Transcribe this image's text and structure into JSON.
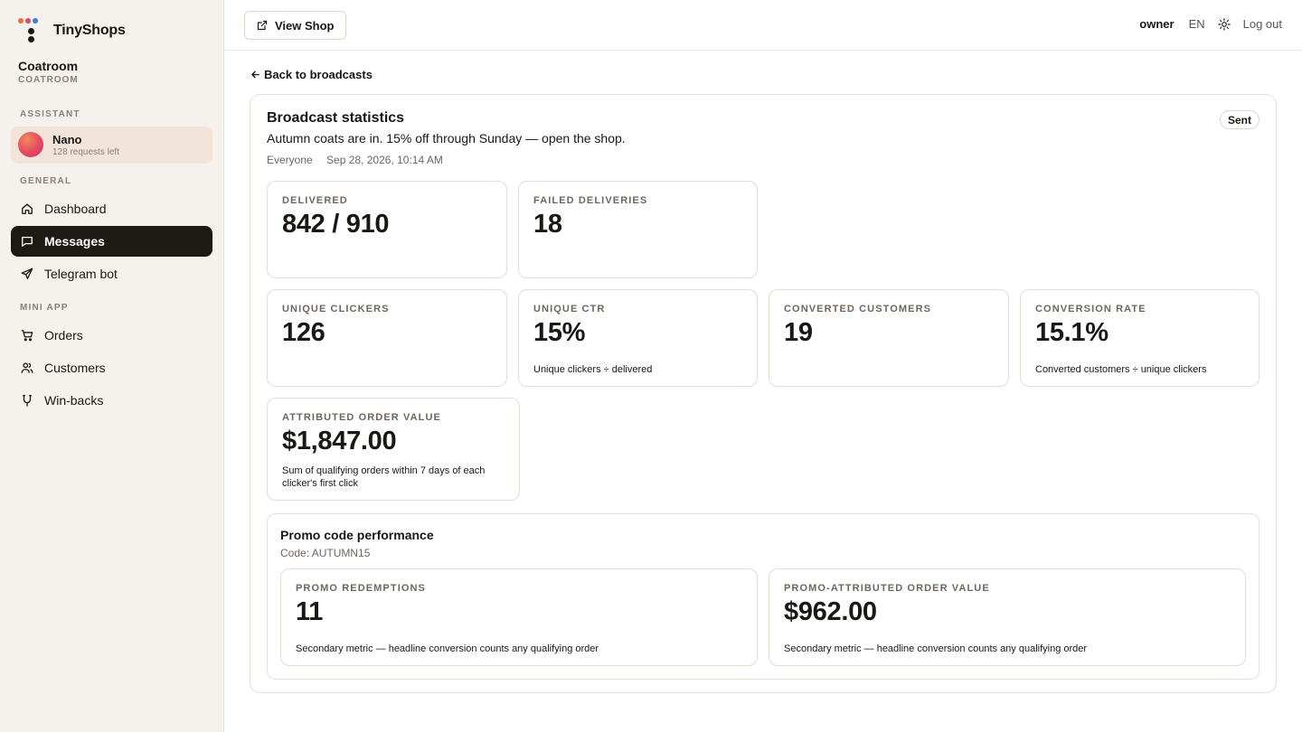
{
  "brand": {
    "name": "TinyShops"
  },
  "shop": {
    "name": "Coatroom",
    "slug": "COATROOM"
  },
  "sidebar": {
    "assistant_label": "ASSISTANT",
    "assistant": {
      "name": "Nano",
      "requests": "128 requests left"
    },
    "general_label": "GENERAL",
    "general_items": [
      {
        "label": "Dashboard",
        "icon": "home-icon"
      },
      {
        "label": "Messages",
        "icon": "message-icon",
        "active": true
      },
      {
        "label": "Telegram bot",
        "icon": "send-icon"
      }
    ],
    "mini_app_label": "MINI APP",
    "mini_app_items": [
      {
        "label": "Orders",
        "icon": "cart-icon"
      },
      {
        "label": "Customers",
        "icon": "users-icon"
      },
      {
        "label": "Win-backs",
        "icon": "magnet-icon"
      }
    ]
  },
  "topbar": {
    "view_shop": "View Shop",
    "user": "owner",
    "lang": "EN",
    "logout": "Log out"
  },
  "back_link": "Back to broadcasts",
  "broadcast": {
    "title": "Broadcast statistics",
    "message": "Autumn coats are in. 15% off through Sunday — open the shop.",
    "audience": "Everyone",
    "date": "Sep 28, 2026, 10:14 AM",
    "status": "Sent"
  },
  "metrics": {
    "delivered": {
      "label": "DELIVERED",
      "value": "842 / 910"
    },
    "failed": {
      "label": "FAILED DELIVERIES",
      "value": "18"
    },
    "unique_clickers": {
      "label": "UNIQUE CLICKERS",
      "value": "126"
    },
    "unique_ctr": {
      "label": "UNIQUE CTR",
      "value": "15%",
      "note": "Unique clickers ÷ delivered"
    },
    "converted": {
      "label": "CONVERTED CUSTOMERS",
      "value": "19"
    },
    "conversion_rate": {
      "label": "CONVERSION RATE",
      "value": "15.1%",
      "note": "Converted customers ÷ unique clickers"
    },
    "attributed_value": {
      "label": "ATTRIBUTED ORDER VALUE",
      "value": "$1,847.00",
      "note_line1": "Sum of qualifying orders within 7 days of each",
      "note_line2": "clicker's first click"
    }
  },
  "promo": {
    "title": "Promo code performance",
    "code": "Code: AUTUMN15",
    "redemptions": {
      "label": "PROMO REDEMPTIONS",
      "value": "11",
      "note": "Secondary metric — headline conversion counts any qualifying order"
    },
    "order_value": {
      "label": "PROMO-ATTRIBUTED ORDER VALUE",
      "value": "$962.00",
      "note": "Secondary metric — headline conversion counts any qualifying order"
    }
  }
}
